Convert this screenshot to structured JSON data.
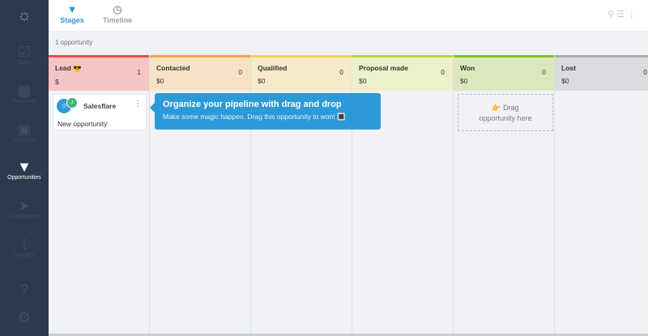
{
  "sidebar": {
    "items": [
      {
        "label": "Tasks",
        "icon": "check-icon"
      },
      {
        "label": "Accounts",
        "icon": "building-icon"
      },
      {
        "label": "Contacts",
        "icon": "contact-card-icon"
      },
      {
        "label": "Opportunities",
        "icon": "funnel-icon",
        "active": true
      },
      {
        "label": "Campaigns",
        "icon": "send-icon"
      },
      {
        "label": "Insights",
        "icon": "sound-wave-icon"
      },
      {
        "label": "",
        "icon": "help-icon"
      },
      {
        "label": "",
        "icon": "gear-icon"
      }
    ]
  },
  "tabs": [
    {
      "label": "Stages",
      "active": true
    },
    {
      "label": "Timeline"
    }
  ],
  "count_label": "1 opportunity",
  "stages": [
    {
      "name": "Lead 😎",
      "count": "1",
      "amount": "$",
      "color": "#ee4b4b",
      "bg": "#f5c4c4"
    },
    {
      "name": "Contacted",
      "count": "0",
      "amount": "$0",
      "color": "#f5a33a",
      "bg": "#f6e3c6"
    },
    {
      "name": "Qualified",
      "count": "0",
      "amount": "$0",
      "color": "#f3d14b",
      "bg": "#f6ebc8"
    },
    {
      "name": "Proposal made",
      "count": "0",
      "amount": "$0",
      "color": "#b6d63a",
      "bg": "#ecf1c9"
    },
    {
      "name": "Won",
      "count": "0",
      "amount": "$0",
      "color": "#84c51f",
      "bg": "#dbe8bd"
    },
    {
      "name": "Lost",
      "count": "0",
      "amount": "$0",
      "color": "#a7a9ad",
      "bg": "#d9dbde"
    }
  ],
  "card": {
    "account": "Salesflare",
    "title": "New opportunity"
  },
  "tooltip": {
    "title": "Organize your pipeline with drag and drop",
    "body": "Make some magic happen. Drag this opportunity to won! 🔳"
  },
  "dropzone": {
    "text": "👉 Drag opportunity here"
  }
}
